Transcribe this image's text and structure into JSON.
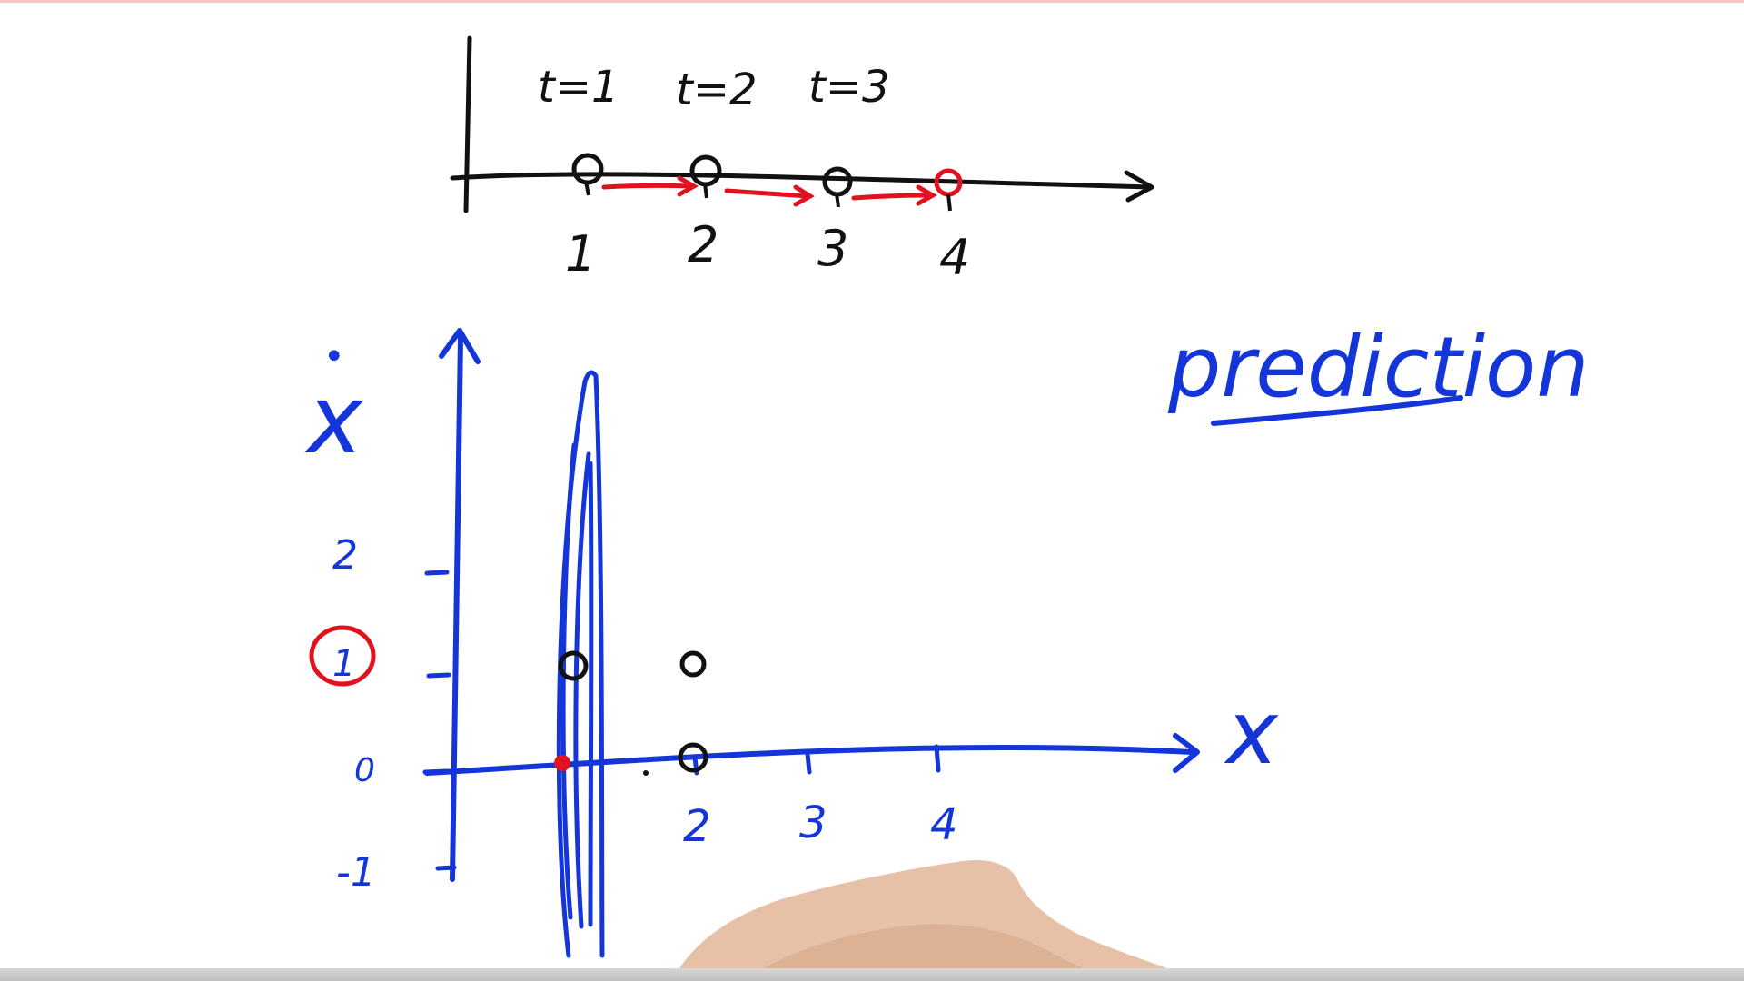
{
  "colors": {
    "ink_black": "#111111",
    "ink_blue": "#1436d8",
    "ink_red": "#e0121d",
    "hand_skin": "#e7c1a7"
  },
  "top_diagram": {
    "time_labels": [
      "t=1",
      "t=2",
      "t=3"
    ],
    "position_labels": [
      "1",
      "2",
      "3",
      "4"
    ]
  },
  "phase_plot": {
    "y_axis_symbol": "x",
    "y_axis_dot": "•",
    "x_axis_symbol": "x",
    "y_ticks": [
      "2",
      "1",
      "0",
      "-1"
    ],
    "x_ticks": [
      "2",
      "3",
      "4"
    ],
    "highlighted_y_tick": "1"
  },
  "annotation": {
    "text": "prediction"
  }
}
